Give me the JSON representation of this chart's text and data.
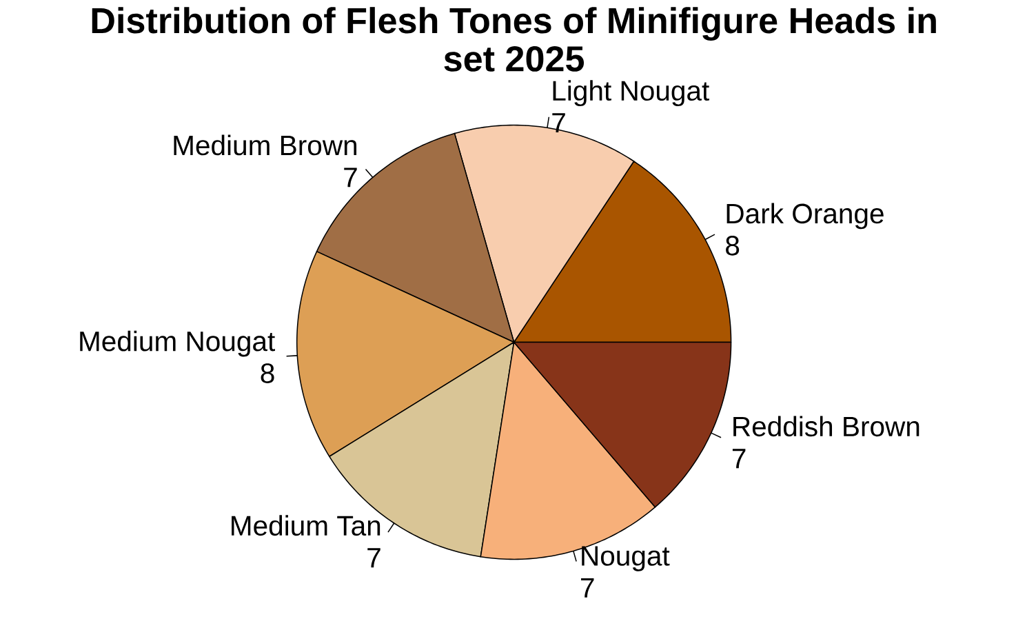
{
  "chart_data": {
    "type": "pie",
    "title": "Distribution of Flesh Tones of Minifigure Heads in set 2025",
    "categories": [
      "Dark Orange",
      "Light Nougat",
      "Medium Brown",
      "Medium Nougat",
      "Medium Tan",
      "Nougat",
      "Reddish Brown"
    ],
    "values": [
      8,
      7,
      7,
      8,
      7,
      7,
      7
    ],
    "colors": [
      "#a95500",
      "#f8cdae",
      "#a06e45",
      "#dd9f55",
      "#d9c596",
      "#f7b07a",
      "#873419"
    ],
    "data_labels": true
  }
}
